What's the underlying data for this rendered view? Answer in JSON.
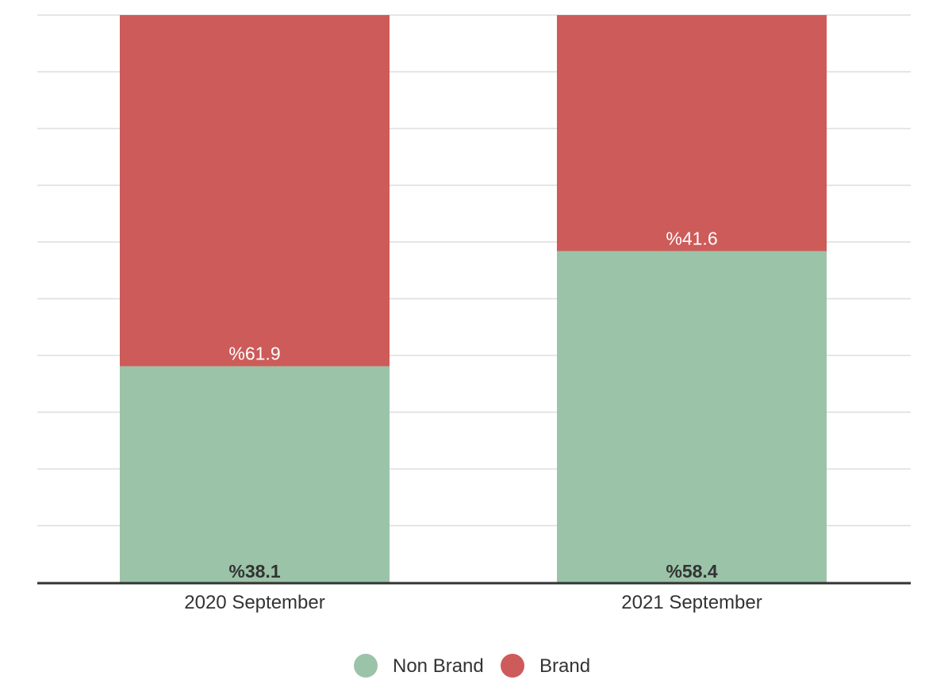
{
  "chart_data": {
    "type": "bar",
    "stacked": true,
    "normalized": true,
    "categories": [
      "2020 September",
      "2021 September"
    ],
    "series": [
      {
        "name": "Non Brand",
        "values": [
          38.1,
          58.4
        ],
        "labels": [
          "%38.1",
          "%58.4"
        ],
        "color": "#9bc3a8"
      },
      {
        "name": "Brand",
        "values": [
          61.9,
          41.6
        ],
        "labels": [
          "%61.9",
          "%41.6"
        ],
        "color": "#cd5b59"
      }
    ],
    "ylim": [
      0,
      100
    ],
    "grid": true,
    "legend": "bottom-center",
    "title": "",
    "xlabel": "",
    "ylabel": ""
  }
}
